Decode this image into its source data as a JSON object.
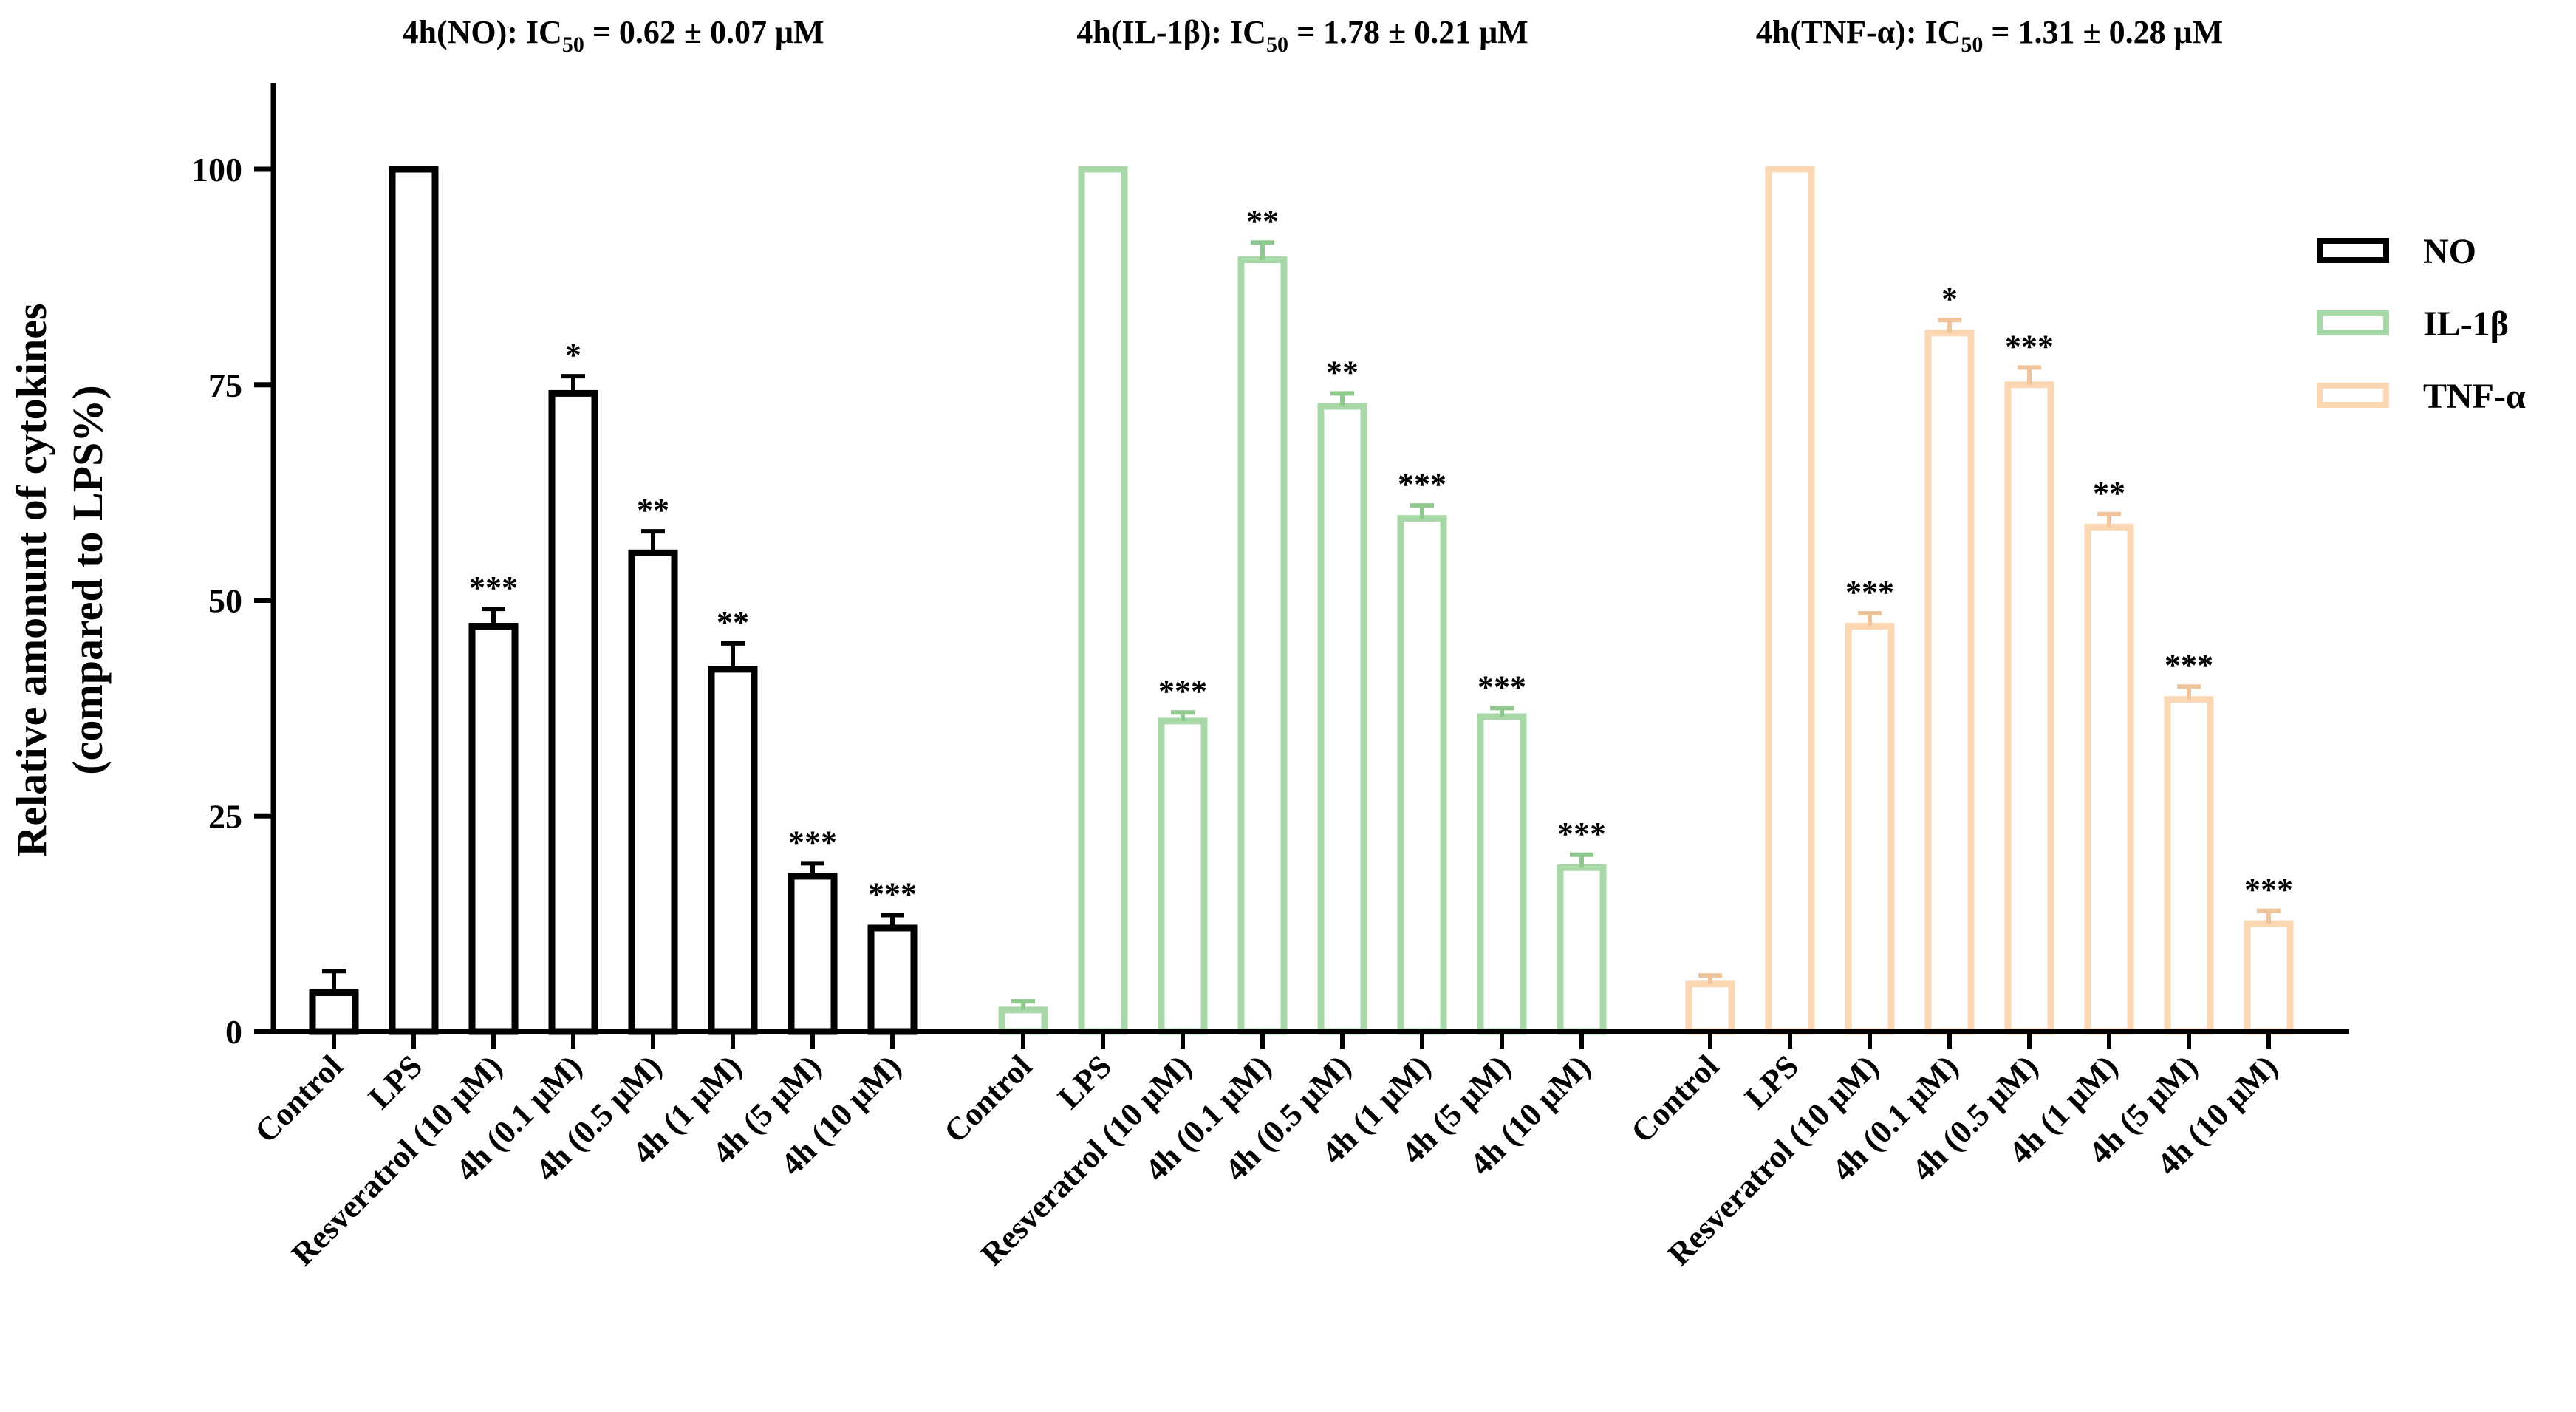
{
  "chart_data": {
    "type": "bar",
    "ylabel_line1": "Relative amonunt of cytokines",
    "ylabel_line2": "(compared to LPS%)",
    "ylim": [
      0,
      110
    ],
    "yticks": [
      0,
      25,
      50,
      75,
      100
    ],
    "categories": [
      "Control",
      "LPS",
      "Resveratrol (10 μM)",
      "4h (0.1 μM)",
      "4h (0.5 μM)",
      "4h (1 μM)",
      "4h (5 μM)",
      "4h (10 μM)"
    ],
    "ic50_titles": [
      {
        "prefix": "4h(NO): IC",
        "sub": "50",
        "suffix": " = 0.62 ± 0.07 μM"
      },
      {
        "prefix": "4h(IL-1β): IC",
        "sub": "50",
        "suffix": " = 1.78 ± 0.21 μM"
      },
      {
        "prefix": "4h(TNF-α): IC",
        "sub": "50",
        "suffix": " = 1.31 ± 0.28 μM"
      }
    ],
    "series": [
      {
        "name": "NO",
        "color": "#000000",
        "values": [
          4.5,
          100,
          47,
          74,
          55.5,
          42,
          18,
          12
        ],
        "errors": [
          2.5,
          0,
          2,
          2,
          2.5,
          3,
          1.5,
          1.5
        ],
        "significance": [
          "",
          "",
          "***",
          "*",
          "**",
          "**",
          "***",
          "***"
        ]
      },
      {
        "name": "IL-1β",
        "color": "#a8d8a8",
        "values": [
          2.5,
          100,
          36,
          89.5,
          72.5,
          59.5,
          36.5,
          19
        ],
        "errors": [
          1,
          0,
          1,
          2,
          1.5,
          1.5,
          1,
          1.5
        ],
        "significance": [
          "",
          "",
          "***",
          "**",
          "**",
          "***",
          "***",
          "***"
        ]
      },
      {
        "name": "TNF-α",
        "color": "#fbd7b3",
        "values": [
          5.5,
          100,
          47,
          81,
          75,
          58.5,
          38.5,
          12.5
        ],
        "errors": [
          1,
          0,
          1.5,
          1.5,
          2,
          1.5,
          1.5,
          1.5
        ],
        "significance": [
          "",
          "",
          "***",
          "*",
          "***",
          "**",
          "***",
          "***"
        ]
      }
    ],
    "legend": {
      "position": "top-right",
      "entries": [
        "NO",
        "IL-1β",
        "TNF-α"
      ]
    }
  }
}
